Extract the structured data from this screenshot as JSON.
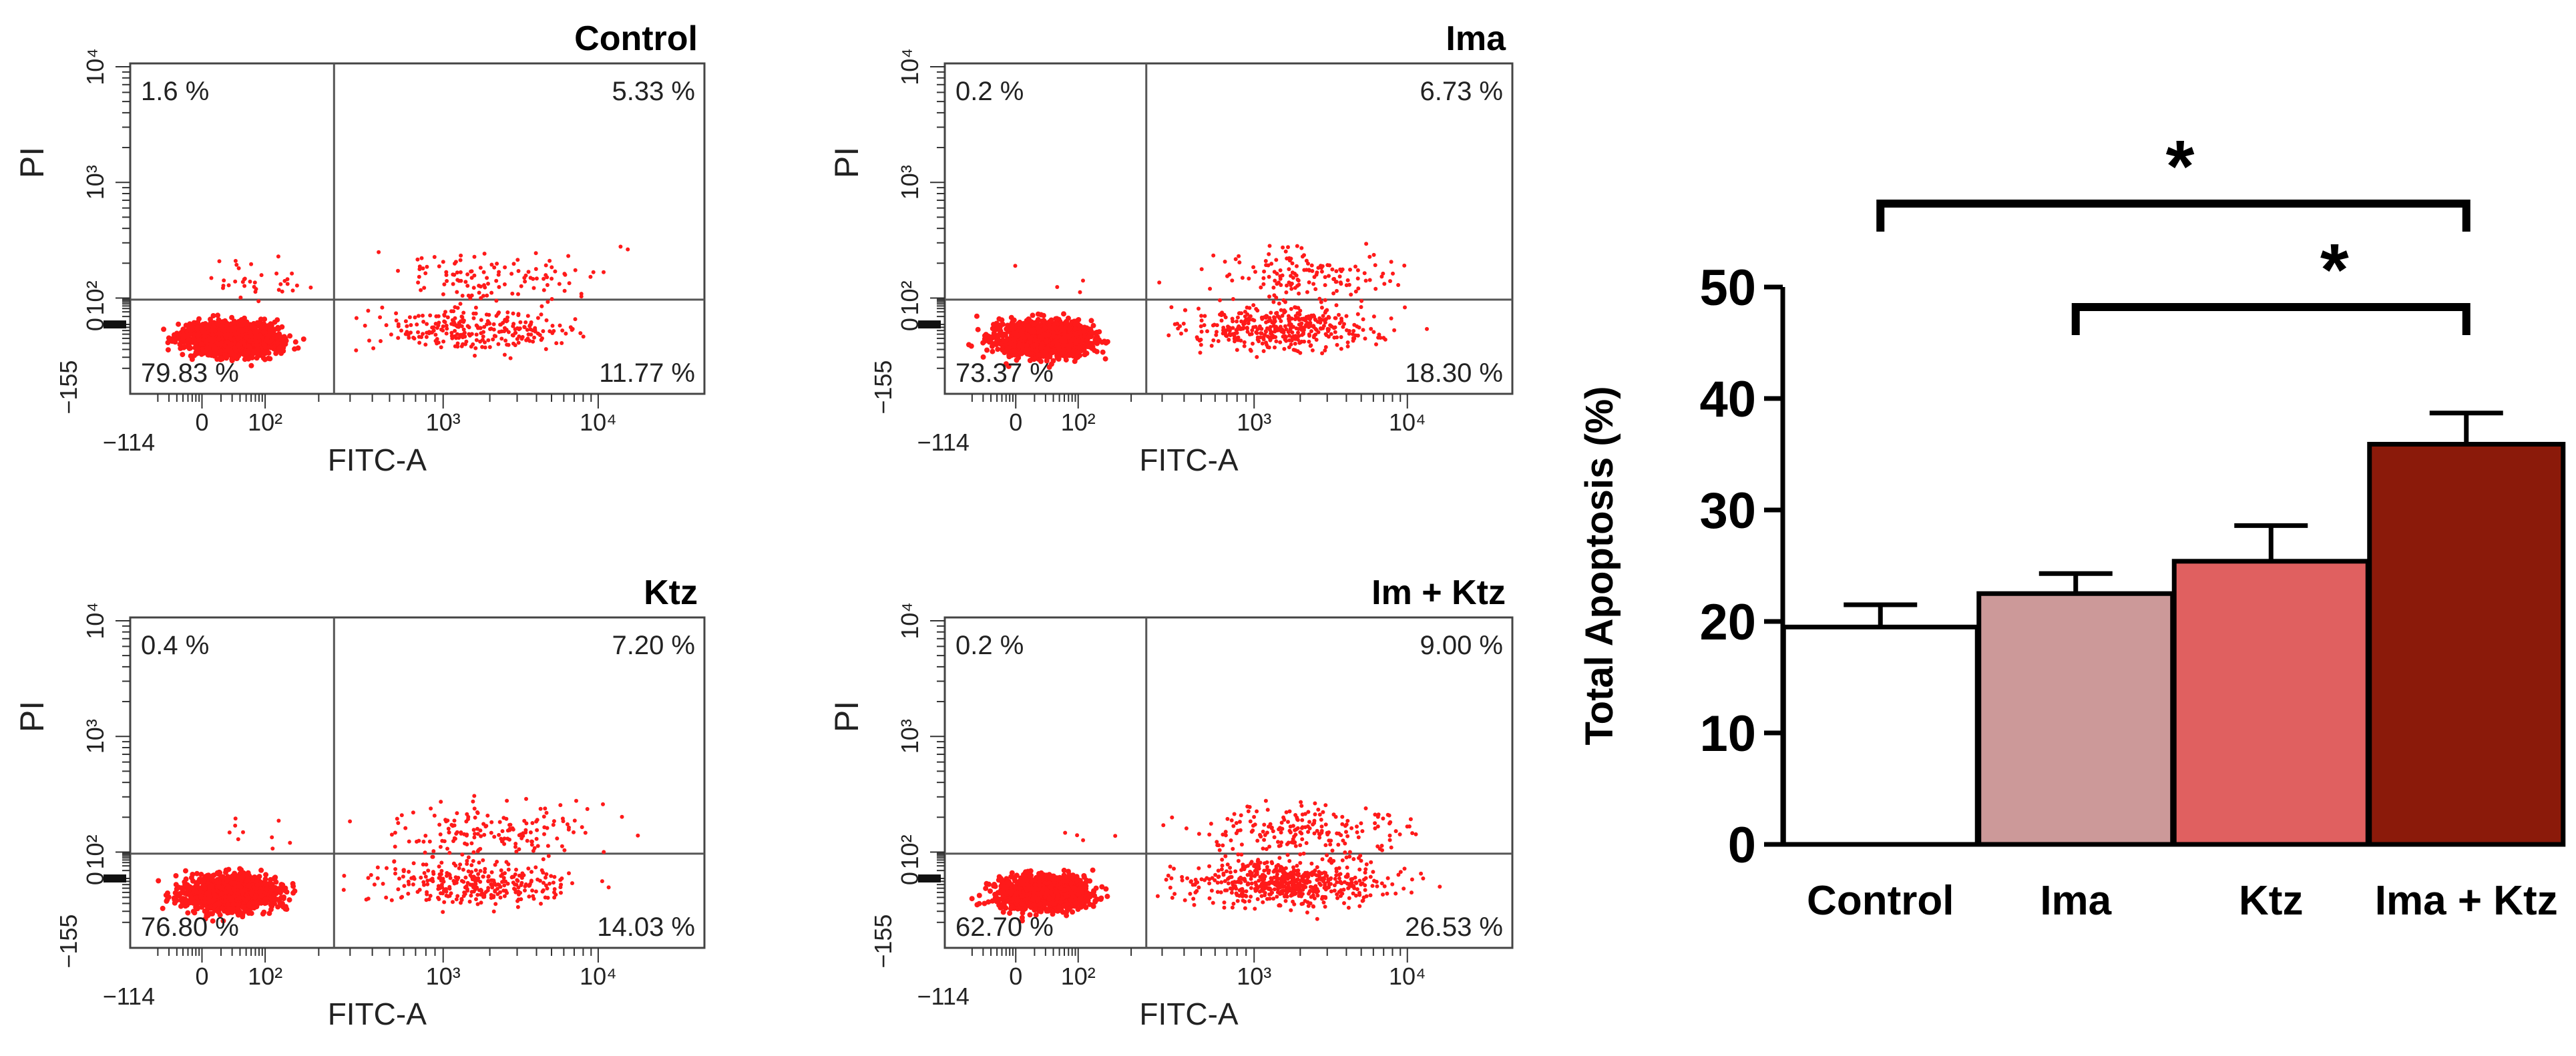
{
  "chart_data": [
    {
      "type": "scatter",
      "panel": "flow-cytometry",
      "title": "Control",
      "xlabel": "FITC-A",
      "ylabel": "PI",
      "x_ticks": [
        "−114",
        "0",
        "10²",
        "10³",
        "10⁴"
      ],
      "y_ticks": [
        "−155",
        "0",
        "10²",
        "10³",
        "10⁴"
      ],
      "quadrants": {
        "upper_left": "1.6 %",
        "upper_right": "5.33 %",
        "lower_left": "79.83 %",
        "lower_right": "11.77 %"
      },
      "quadrant_values": {
        "upper_left": 1.6,
        "upper_right": 5.33,
        "lower_left": 79.83,
        "lower_right": 11.77
      }
    },
    {
      "type": "scatter",
      "panel": "flow-cytometry",
      "title": "Ima",
      "xlabel": "FITC-A",
      "ylabel": "PI",
      "x_ticks": [
        "−114",
        "0",
        "10²",
        "10³",
        "10⁴"
      ],
      "y_ticks": [
        "−155",
        "0",
        "10²",
        "10³",
        "10⁴"
      ],
      "quadrants": {
        "upper_left": "0.2 %",
        "upper_right": "6.73 %",
        "lower_left": "73.37 %",
        "lower_right": "18.30 %"
      },
      "quadrant_values": {
        "upper_left": 0.2,
        "upper_right": 6.73,
        "lower_left": 73.37,
        "lower_right": 18.3
      }
    },
    {
      "type": "scatter",
      "panel": "flow-cytometry",
      "title": "Ktz",
      "xlabel": "FITC-A",
      "ylabel": "PI",
      "x_ticks": [
        "−114",
        "0",
        "10²",
        "10³",
        "10⁴"
      ],
      "y_ticks": [
        "−155",
        "0",
        "10²",
        "10³",
        "10⁴"
      ],
      "quadrants": {
        "upper_left": "0.4 %",
        "upper_right": "7.20 %",
        "lower_left": "76.80 %",
        "lower_right": "14.03 %"
      },
      "quadrant_values": {
        "upper_left": 0.4,
        "upper_right": 7.2,
        "lower_left": 76.8,
        "lower_right": 14.03
      }
    },
    {
      "type": "scatter",
      "panel": "flow-cytometry",
      "title": "Im + Ktz",
      "xlabel": "FITC-A",
      "ylabel": "PI",
      "x_ticks": [
        "−114",
        "0",
        "10²",
        "10³",
        "10⁴"
      ],
      "y_ticks": [
        "−155",
        "0",
        "10²",
        "10³",
        "10⁴"
      ],
      "quadrants": {
        "upper_left": "0.2 %",
        "upper_right": "9.00 %",
        "lower_left": "62.70 %",
        "lower_right": "26.53 %"
      },
      "quadrant_values": {
        "upper_left": 0.2,
        "upper_right": 9.0,
        "lower_left": 62.7,
        "lower_right": 26.53
      }
    },
    {
      "type": "bar",
      "title": "",
      "xlabel": "",
      "ylabel": "Total Apoptosis (%)",
      "categories": [
        "Control",
        "Ima",
        "Ktz",
        "Ima + Ktz"
      ],
      "values": [
        19.5,
        22.5,
        25.4,
        35.9
      ],
      "errors": [
        2.0,
        1.8,
        3.2,
        2.8
      ],
      "colors": [
        "#ffffff",
        "#cc9999",
        "#e06060",
        "#8b1a0a"
      ],
      "ylim": [
        0,
        50
      ],
      "yticks": [
        0,
        10,
        20,
        30,
        40,
        50
      ],
      "ytick_labels": [
        "0",
        "10",
        "20",
        "30",
        "40",
        "50"
      ],
      "significance": [
        {
          "from": "Control",
          "to": "Ima + Ktz",
          "label": "*"
        },
        {
          "from": "Ima",
          "to": "Ima + Ktz",
          "label": "*"
        }
      ]
    }
  ]
}
